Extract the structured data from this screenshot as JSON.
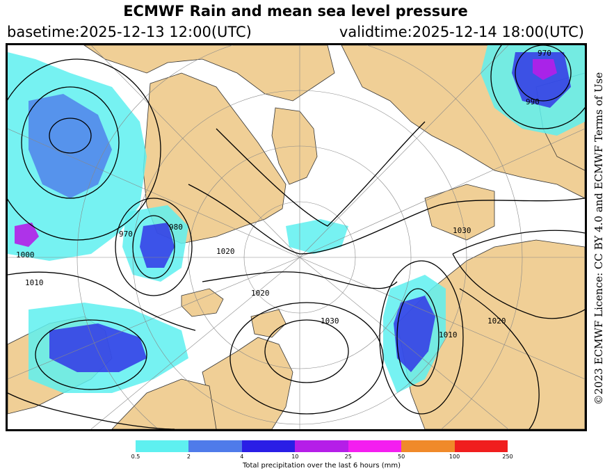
{
  "header": {
    "title": "ECMWF Rain and mean sea level pressure",
    "basetime": "basetime:2025-12-13 12:00(UTC)",
    "validtime": "validtime:2025-12-14 18:00(UTC)"
  },
  "licence": "©2023 ECMWF Licence: CC BY 4.0 and ECMWF Terms of Use",
  "isobar_labels": [
    "970",
    "980",
    "1000",
    "1010",
    "1020",
    "1030",
    "1030",
    "1020",
    "1010",
    "1020",
    "990",
    "970"
  ],
  "legend": {
    "label": "Total precipitation over the last 6 hours (mm)",
    "ticks": [
      "0.5",
      "2",
      "4",
      "10",
      "25",
      "50",
      "100",
      "250"
    ],
    "colors": [
      "#5ef0f0",
      "#4f7bea",
      "#2a1ee6",
      "#b51ee8",
      "#f41ef0",
      "#f08a2a",
      "#f01e1e"
    ]
  },
  "colors": {
    "land": "#f0cf96",
    "sea": "#ffffff",
    "isobar": "#000000",
    "graticule": "#888888"
  }
}
